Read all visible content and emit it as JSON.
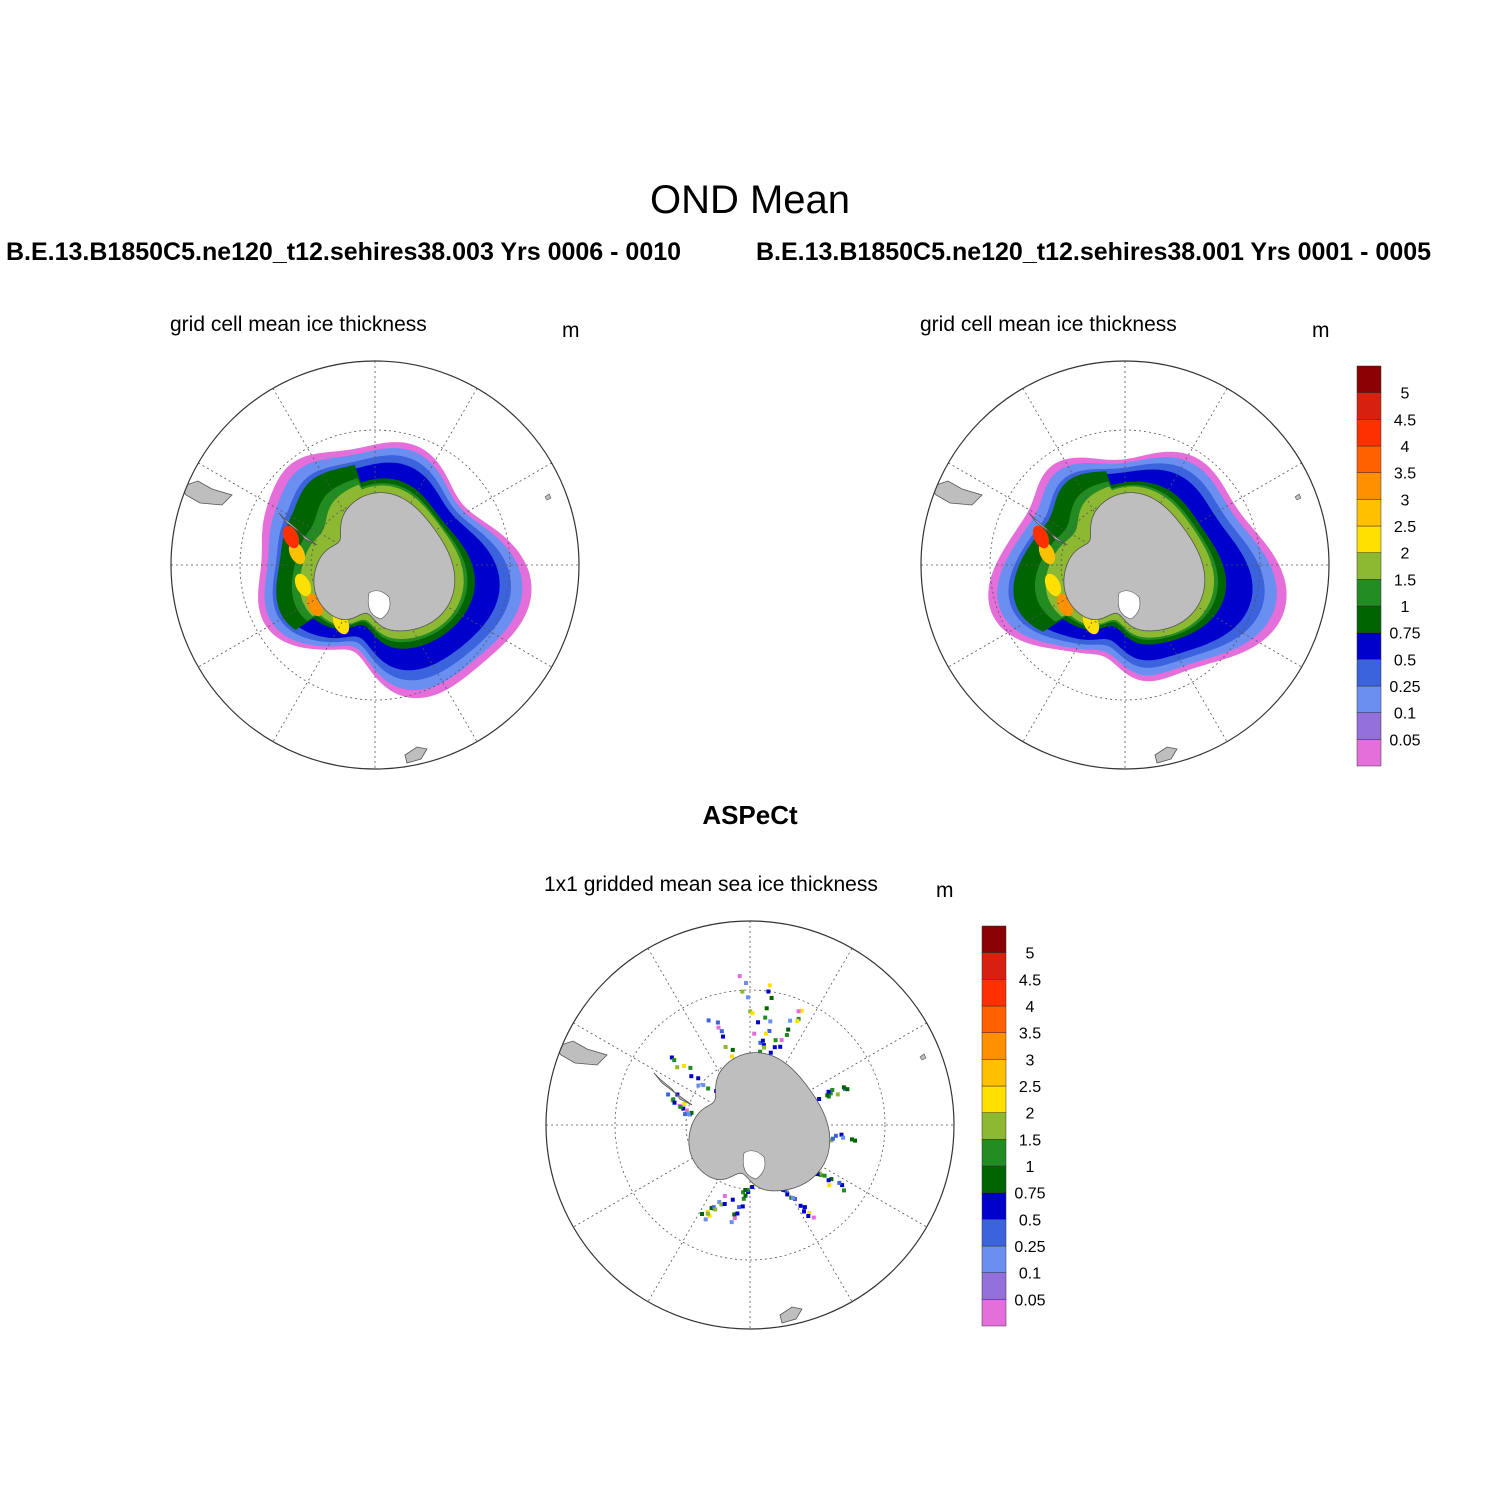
{
  "figure": {
    "title": "OND Mean",
    "colors": {
      "land": "#bebebe",
      "coast": "#555555",
      "grid": "#555555",
      "ring": "#333333"
    },
    "colorbar": {
      "colors": [
        "#e46fdb",
        "#9370db",
        "#6a8ff0",
        "#3a63dd",
        "#0000cd",
        "#006400",
        "#228b22",
        "#8db832",
        "#ffe000",
        "#ffc000",
        "#ff9000",
        "#ff6000",
        "#ff3000",
        "#d82010",
        "#8b0000"
      ],
      "labels": [
        "0.05",
        "0.1",
        "0.25",
        "0.5",
        "0.75",
        "1",
        "1.5",
        "2",
        "2.5",
        "3",
        "3.5",
        "4",
        "4.5",
        "5"
      ]
    }
  },
  "panels": [
    {
      "case": "B.E.13.B1850C5.ne120_t12.sehires38.003  Yrs 0006 - 0010",
      "variable": "grid cell mean ice thickness",
      "units": "m",
      "ice_bands_m": [
        0.05,
        0.25,
        0.5,
        0.75,
        1.0,
        1.5,
        2.0
      ]
    },
    {
      "case": "B.E.13.B1850C5.ne120_t12.sehires38.001  Yrs 0001 - 0005",
      "variable": "grid cell mean ice thickness",
      "units": "m",
      "ice_bands_m": [
        0.05,
        0.25,
        0.5,
        0.75,
        1.0,
        1.5,
        2.0
      ]
    },
    {
      "case": "ASPeCt",
      "variable": "1x1 gridded mean sea ice thickness",
      "units": "m",
      "observations": "ship-track samples"
    }
  ]
}
